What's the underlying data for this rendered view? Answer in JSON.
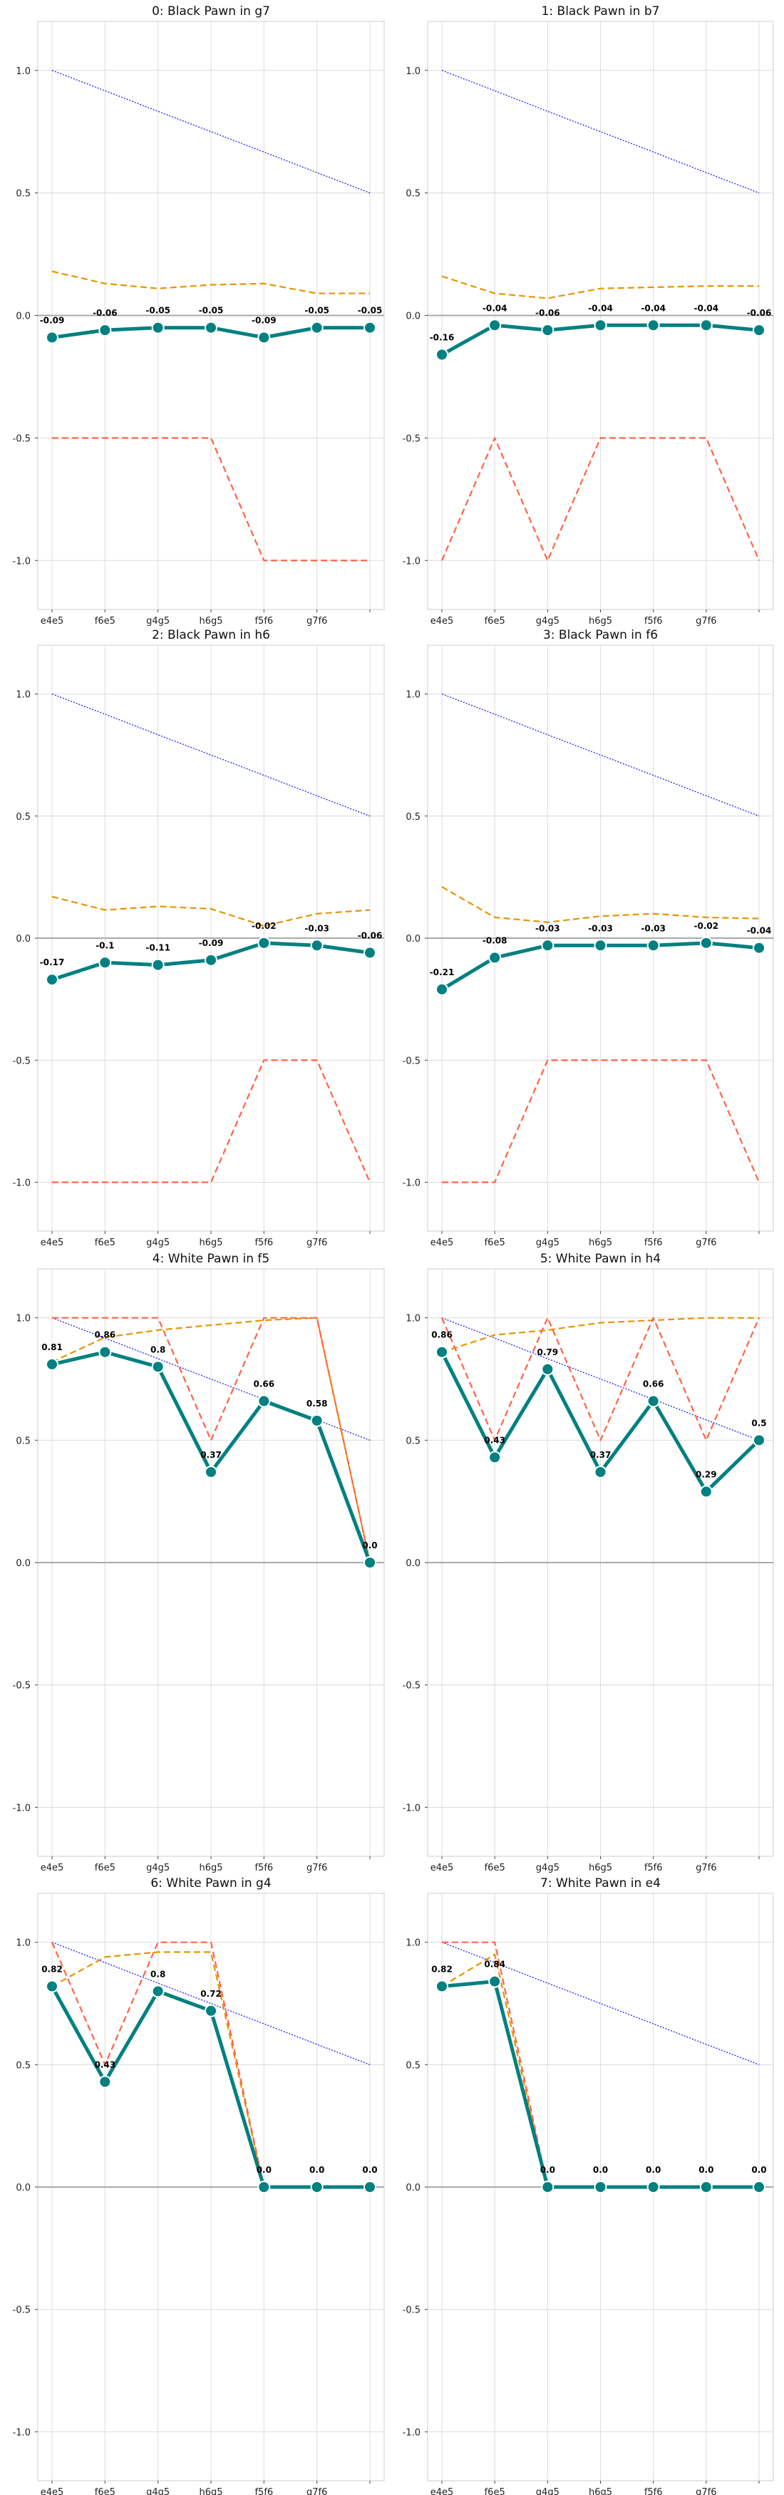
{
  "colors": {
    "main_series": "#008080",
    "main_marker_edge": "#ffffff",
    "orange_series": "#e69500",
    "red_series": "#ff6347",
    "blue_series": "#2020ff",
    "zero_line": "#aaaaaa",
    "grid": "#dcdcdc"
  },
  "chart_data": [
    {
      "type": "line",
      "title": "0: Black Pawn in g7",
      "categories": [
        "e4e5",
        "f6e5",
        "g4g5",
        "h6g5",
        "f5f6",
        "g7f6",
        ""
      ],
      "ylim": [
        -1.2,
        1.2
      ],
      "yticks": [
        "1.0",
        "0.5",
        "0.0",
        "-0.5",
        "-1.0"
      ],
      "grid": true,
      "series": [
        {
          "style": "blue-dotted",
          "values": [
            1.0,
            0.917,
            0.833,
            0.75,
            0.667,
            0.583,
            0.5
          ]
        },
        {
          "style": "orange-dashed",
          "values": [
            0.18,
            0.13,
            0.11,
            0.125,
            0.13,
            0.09,
            0.09
          ]
        },
        {
          "style": "red-dashed",
          "values": [
            -0.5,
            -0.5,
            -0.5,
            -0.5,
            -1.0,
            -1.0,
            -1.0
          ]
        },
        {
          "style": "main",
          "values": [
            -0.09,
            -0.06,
            -0.05,
            -0.05,
            -0.09,
            -0.05,
            -0.05
          ],
          "labels": [
            "-0.09",
            "-0.06",
            "-0.05",
            "-0.05",
            "-0.09",
            "-0.05",
            "-0.05"
          ]
        }
      ]
    },
    {
      "type": "line",
      "title": "1: Black Pawn in b7",
      "categories": [
        "e4e5",
        "f6e5",
        "g4g5",
        "h6g5",
        "f5f6",
        "g7f6",
        ""
      ],
      "ylim": [
        -1.2,
        1.2
      ],
      "yticks": [
        "1.0",
        "0.5",
        "0.0",
        "-0.5",
        "-1.0"
      ],
      "grid": true,
      "series": [
        {
          "style": "blue-dotted",
          "values": [
            1.0,
            0.917,
            0.833,
            0.75,
            0.667,
            0.583,
            0.5
          ]
        },
        {
          "style": "orange-dashed",
          "values": [
            0.16,
            0.09,
            0.07,
            0.11,
            0.115,
            0.12,
            0.12
          ]
        },
        {
          "style": "red-dashed",
          "values": [
            -1.0,
            -0.5,
            -1.0,
            -0.5,
            -0.5,
            -0.5,
            -1.0
          ]
        },
        {
          "style": "main",
          "values": [
            -0.16,
            -0.04,
            -0.06,
            -0.04,
            -0.04,
            -0.04,
            -0.06
          ],
          "labels": [
            "-0.16",
            "-0.04",
            "-0.06",
            "-0.04",
            "-0.04",
            "-0.04",
            "-0.06"
          ]
        }
      ]
    },
    {
      "type": "line",
      "title": "2: Black Pawn in h6",
      "categories": [
        "e4e5",
        "f6e5",
        "g4g5",
        "h6g5",
        "f5f6",
        "g7f6",
        ""
      ],
      "ylim": [
        -1.2,
        1.2
      ],
      "yticks": [
        "1.0",
        "0.5",
        "0.0",
        "-0.5",
        "-1.0"
      ],
      "grid": true,
      "series": [
        {
          "style": "blue-dotted",
          "values": [
            1.0,
            0.917,
            0.833,
            0.75,
            0.667,
            0.583,
            0.5
          ]
        },
        {
          "style": "orange-dashed",
          "values": [
            0.17,
            0.115,
            0.13,
            0.12,
            0.05,
            0.1,
            0.115
          ]
        },
        {
          "style": "red-dashed",
          "values": [
            -1.0,
            -1.0,
            -1.0,
            -1.0,
            -0.5,
            -0.5,
            -1.0
          ]
        },
        {
          "style": "main",
          "values": [
            -0.17,
            -0.1,
            -0.11,
            -0.09,
            -0.02,
            -0.03,
            -0.06
          ],
          "labels": [
            "-0.17",
            "-0.1",
            "-0.11",
            "-0.09",
            "-0.02",
            "-0.03",
            "-0.06"
          ]
        }
      ]
    },
    {
      "type": "line",
      "title": "3: Black Pawn in f6",
      "categories": [
        "e4e5",
        "f6e5",
        "g4g5",
        "h6g5",
        "f5f6",
        "g7f6",
        ""
      ],
      "ylim": [
        -1.2,
        1.2
      ],
      "yticks": [
        "1.0",
        "0.5",
        "0.0",
        "-0.5",
        "-1.0"
      ],
      "grid": true,
      "series": [
        {
          "style": "blue-dotted",
          "values": [
            1.0,
            0.917,
            0.833,
            0.75,
            0.667,
            0.583,
            0.5
          ]
        },
        {
          "style": "orange-dashed",
          "values": [
            0.21,
            0.085,
            0.065,
            0.09,
            0.1,
            0.085,
            0.08
          ]
        },
        {
          "style": "red-dashed",
          "values": [
            -1.0,
            -1.0,
            -0.5,
            -0.5,
            -0.5,
            -0.5,
            -1.0
          ]
        },
        {
          "style": "main",
          "values": [
            -0.21,
            -0.08,
            -0.03,
            -0.03,
            -0.03,
            -0.02,
            -0.04
          ],
          "labels": [
            "-0.21",
            "-0.08",
            "-0.03",
            "-0.03",
            "-0.03",
            "-0.02",
            "-0.04"
          ]
        }
      ]
    },
    {
      "type": "line",
      "title": "4: White Pawn in f5",
      "categories": [
        "e4e5",
        "f6e5",
        "g4g5",
        "h6g5",
        "f5f6",
        "g7f6",
        ""
      ],
      "ylim": [
        -1.2,
        1.2
      ],
      "yticks": [
        "1.0",
        "0.5",
        "0.0",
        "-0.5",
        "-1.0"
      ],
      "grid": true,
      "series": [
        {
          "style": "blue-dotted",
          "values": [
            1.0,
            0.917,
            0.833,
            0.75,
            0.667,
            0.583,
            0.5
          ]
        },
        {
          "style": "orange-dashed",
          "values": [
            0.82,
            0.92,
            0.95,
            0.97,
            0.99,
            1.0,
            0.0
          ]
        },
        {
          "style": "red-dashed",
          "values": [
            1.0,
            1.0,
            1.0,
            0.5,
            1.0,
            1.0,
            0.0
          ]
        },
        {
          "style": "main",
          "values": [
            0.81,
            0.86,
            0.8,
            0.37,
            0.66,
            0.58,
            0.0
          ],
          "labels": [
            "0.81",
            "0.86",
            "0.8",
            "0.37",
            "0.66",
            "0.58",
            "0.0"
          ]
        }
      ]
    },
    {
      "type": "line",
      "title": "5: White Pawn in h4",
      "categories": [
        "e4e5",
        "f6e5",
        "g4g5",
        "h6g5",
        "f5f6",
        "g7f6",
        ""
      ],
      "ylim": [
        -1.2,
        1.2
      ],
      "yticks": [
        "1.0",
        "0.5",
        "0.0",
        "-0.5",
        "-1.0"
      ],
      "grid": true,
      "series": [
        {
          "style": "blue-dotted",
          "values": [
            1.0,
            0.917,
            0.833,
            0.75,
            0.667,
            0.583,
            0.5
          ]
        },
        {
          "style": "orange-dashed",
          "values": [
            0.86,
            0.93,
            0.95,
            0.98,
            0.99,
            1.0,
            1.0
          ]
        },
        {
          "style": "red-dashed",
          "values": [
            1.0,
            0.5,
            1.0,
            0.5,
            1.0,
            0.5,
            1.0
          ]
        },
        {
          "style": "main",
          "values": [
            0.86,
            0.43,
            0.79,
            0.37,
            0.66,
            0.29,
            0.5
          ],
          "labels": [
            "0.86",
            "0.43",
            "0.79",
            "0.37",
            "0.66",
            "0.29",
            "0.5"
          ]
        }
      ]
    },
    {
      "type": "line",
      "title": "6: White Pawn in g4",
      "categories": [
        "e4e5",
        "f6e5",
        "g4g5",
        "h6g5",
        "f5f6",
        "g7f6",
        ""
      ],
      "ylim": [
        -1.2,
        1.2
      ],
      "yticks": [
        "1.0",
        "0.5",
        "0.0",
        "-0.5",
        "-1.0"
      ],
      "grid": true,
      "series": [
        {
          "style": "blue-dotted",
          "values": [
            1.0,
            0.917,
            0.833,
            0.75,
            0.667,
            0.583,
            0.5
          ]
        },
        {
          "style": "orange-dashed",
          "values": [
            0.82,
            0.94,
            0.96,
            0.96,
            0.0,
            0.0,
            0.0
          ]
        },
        {
          "style": "red-dashed",
          "values": [
            1.0,
            0.5,
            1.0,
            1.0,
            0.0,
            0.0,
            0.0
          ]
        },
        {
          "style": "main",
          "values": [
            0.82,
            0.43,
            0.8,
            0.72,
            0.0,
            0.0,
            0.0
          ],
          "labels": [
            "0.82",
            "0.43",
            "0.8",
            "0.72",
            "0.0",
            "0.0",
            "0.0"
          ]
        }
      ]
    },
    {
      "type": "line",
      "title": "7: White Pawn in e4",
      "categories": [
        "e4e5",
        "f6e5",
        "g4g5",
        "h6g5",
        "f5f6",
        "g7f6",
        ""
      ],
      "ylim": [
        -1.2,
        1.2
      ],
      "yticks": [
        "1.0",
        "0.5",
        "0.0",
        "-0.5",
        "-1.0"
      ],
      "grid": true,
      "series": [
        {
          "style": "blue-dotted",
          "values": [
            1.0,
            0.917,
            0.833,
            0.75,
            0.667,
            0.583,
            0.5
          ]
        },
        {
          "style": "orange-dashed",
          "values": [
            0.82,
            0.95,
            0.0,
            0.0,
            0.0,
            0.0,
            0.0
          ]
        },
        {
          "style": "red-dashed",
          "values": [
            1.0,
            1.0,
            0.0,
            0.0,
            0.0,
            0.0,
            0.0
          ]
        },
        {
          "style": "main",
          "values": [
            0.82,
            0.84,
            0.0,
            0.0,
            0.0,
            0.0,
            0.0
          ],
          "labels": [
            "0.82",
            "0.84",
            "0.0",
            "0.0",
            "0.0",
            "0.0",
            "0.0"
          ]
        }
      ]
    }
  ]
}
